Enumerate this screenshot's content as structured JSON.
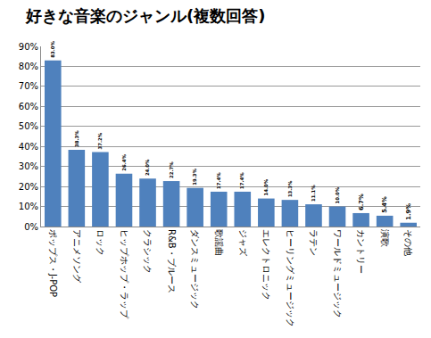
{
  "chart_data": {
    "type": "bar",
    "title": "好きな音楽のジャンル(複数回答)",
    "categories": [
      "ポップス・J-POP",
      "アニメソング",
      "ロック",
      "ヒップホップ・ラップ",
      "クラシック",
      "R&B・ブルース",
      "ダンスミュージック",
      "歌謡曲",
      "ジャズ",
      "エレクトロニック",
      "ヒーリングミュージック",
      "ラテン",
      "ワールドミュージック",
      "カントリー",
      "演歌",
      "その他"
    ],
    "values": [
      83.0,
      38.3,
      37.2,
      26.4,
      24.0,
      22.7,
      19.3,
      17.4,
      17.4,
      14.0,
      13.3,
      11.1,
      10.0,
      6.7,
      5.4,
      1.9
    ],
    "value_labels": [
      "83.0%",
      "38.3%",
      "37.2%",
      "26.4%",
      "24.0%",
      "22.7%",
      "19.3%",
      "17.4%",
      "17.4%",
      "14.0%",
      "13.3%",
      "11.1%",
      "10.0%",
      "6.7%",
      "5.4%",
      "1.9%"
    ],
    "color": "#4f81bd",
    "ylim": [
      0,
      90
    ],
    "yticks": [
      {
        "value": 0,
        "label": "0%"
      },
      {
        "value": 10,
        "label": "10%"
      },
      {
        "value": 20,
        "label": "20%"
      },
      {
        "value": 30,
        "label": "30%"
      },
      {
        "value": 40,
        "label": "40%"
      },
      {
        "value": 50,
        "label": "50%"
      },
      {
        "value": 60,
        "label": "60%"
      },
      {
        "value": 70,
        "label": "70%"
      },
      {
        "value": 80,
        "label": "80%"
      },
      {
        "value": 90,
        "label": "90%"
      }
    ],
    "grid": true,
    "data_labels": true
  }
}
